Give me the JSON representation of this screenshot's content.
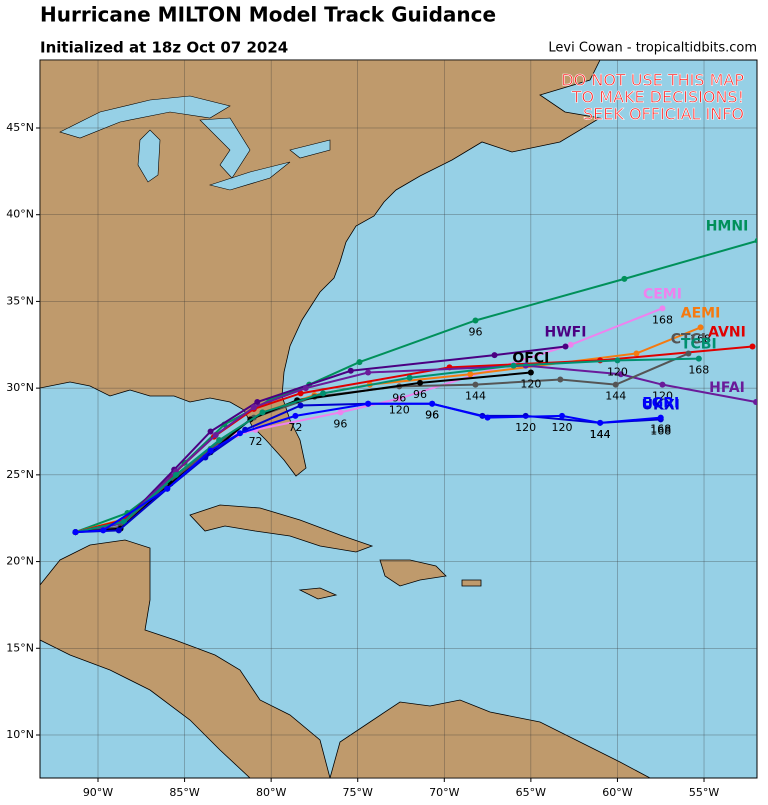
{
  "chart_data": {
    "type": "line",
    "title": "Hurricane MILTON Model Track Guidance",
    "subtitle": "Initialized at 18z Oct 07 2024",
    "credit": "Levi Cowan - tropicaltidbits.com",
    "warning": [
      "DO NOT USE THIS MAP",
      "TO MAKE DECISIONS!",
      "SEEK OFFICIAL INFO"
    ],
    "xlim": [
      -93.35,
      -51.94
    ],
    "ylim": [
      7.52,
      48.92
    ],
    "xticks": [
      {
        "value": -90,
        "label": "90°W"
      },
      {
        "value": -85,
        "label": "85°W"
      },
      {
        "value": -80,
        "label": "80°W"
      },
      {
        "value": -75,
        "label": "75°W"
      },
      {
        "value": -70,
        "label": "70°W"
      },
      {
        "value": -65,
        "label": "65°W"
      },
      {
        "value": -60,
        "label": "60°W"
      },
      {
        "value": -55,
        "label": "55°W"
      }
    ],
    "yticks": [
      {
        "value": 10,
        "label": "10°N"
      },
      {
        "value": 15,
        "label": "15°N"
      },
      {
        "value": 20,
        "label": "20°N"
      },
      {
        "value": 25,
        "label": "25°N"
      },
      {
        "value": 30,
        "label": "30°N"
      },
      {
        "value": 35,
        "label": "35°N"
      },
      {
        "value": 40,
        "label": "40°N"
      },
      {
        "value": 45,
        "label": "45°N"
      }
    ],
    "grid": true,
    "series": [
      {
        "name": "HMNI",
        "color": "#00905a",
        "x": [
          -91.3,
          -88.3,
          -86.7,
          -85,
          -82.7,
          -80.1,
          -77.8,
          -74.9,
          -68.2,
          -59.6,
          -51.9
        ],
        "y": [
          21.7,
          22.8,
          24.0,
          25.7,
          27.9,
          29.3,
          30.2,
          31.5,
          33.9,
          36.3,
          38.5
        ],
        "hours": [
          null,
          null,
          null,
          null,
          null,
          null,
          null,
          null,
          "96",
          null,
          null
        ]
      },
      {
        "name": "CEMI",
        "color": "#ee82ee",
        "x": [
          -91.3,
          -88.5,
          -86,
          -84,
          -82,
          -80.9,
          -76,
          -72.6,
          -62.7,
          -57.4
        ],
        "y": [
          21.7,
          22.3,
          24.3,
          26.0,
          27.3,
          27.6,
          28.6,
          29.4,
          32.5,
          34.6
        ],
        "hours": [
          null,
          null,
          null,
          null,
          null,
          "72",
          "96",
          "120",
          null,
          "168"
        ]
      },
      {
        "name": "AEMI",
        "color": "#f57a10",
        "x": [
          -91.3,
          -88.3,
          -85.5,
          -83,
          -80.5,
          -77.5,
          -74.3,
          -68.5,
          -58.9,
          -55.2
        ],
        "y": [
          21.7,
          22.5,
          24.8,
          27.0,
          28.6,
          29.6,
          30.2,
          30.8,
          32.0,
          33.5
        ],
        "hours": [
          null,
          null,
          null,
          null,
          null,
          null,
          null,
          null,
          null,
          "168"
        ]
      },
      {
        "name": "AVNI",
        "color": "#e00000",
        "x": [
          -91.3,
          -88.5,
          -85.8,
          -83.3,
          -81,
          -78.3,
          -69.7,
          -61,
          -52.2
        ],
        "y": [
          21.7,
          22.4,
          24.9,
          27.2,
          28.8,
          29.7,
          31.2,
          31.6,
          32.4
        ],
        "hours": [
          null,
          null,
          null,
          null,
          null,
          null,
          null,
          null,
          null
        ]
      },
      {
        "name": "HWFI",
        "color": "#4b0082",
        "x": [
          -91.3,
          -88.6,
          -85.6,
          -83.5,
          -80.8,
          -75.4,
          -67.1,
          -63.0
        ],
        "y": [
          21.7,
          22.2,
          25.3,
          27.5,
          29.2,
          31.0,
          31.9,
          32.4
        ],
        "hours": [
          null,
          null,
          null,
          null,
          null,
          null,
          null,
          null
        ]
      },
      {
        "name": "HFAI",
        "color": "#6a1b9a",
        "x": [
          -91.3,
          -88.6,
          -85.5,
          -83.2,
          -81,
          -78,
          -74.4,
          -65.3,
          -59.8,
          -57.4,
          -52.0
        ],
        "y": [
          21.7,
          22.2,
          25.2,
          27.3,
          28.9,
          30.0,
          30.9,
          31.3,
          30.8,
          30.2,
          29.2
        ],
        "hours": [
          null,
          null,
          null,
          null,
          null,
          null,
          null,
          null,
          null,
          "120",
          null
        ]
      },
      {
        "name": "CTCI",
        "color": "#555555",
        "x": [
          -91.3,
          -88.7,
          -85.8,
          -83.5,
          -81,
          -77.5,
          -72.6,
          -68.2,
          -63.3,
          -60.1,
          -55.9
        ],
        "y": [
          21.7,
          22.0,
          24.6,
          26.5,
          28.3,
          29.5,
          30.1,
          30.2,
          30.5,
          30.2,
          32.0
        ],
        "hours": [
          null,
          null,
          null,
          null,
          null,
          null,
          "96",
          "144",
          null,
          "144",
          null
        ]
      },
      {
        "name": "OFCI",
        "color": "#000000",
        "x": [
          -91.3,
          -88.7,
          -85.8,
          -83.5,
          -81.2,
          -78.5,
          -71.4,
          -65.0
        ],
        "y": [
          21.7,
          21.9,
          24.5,
          26.3,
          28.2,
          29.3,
          30.3,
          30.9
        ],
        "hours": [
          null,
          null,
          null,
          null,
          null,
          null,
          "96",
          "120"
        ]
      },
      {
        "name": "TCBI",
        "color": "#009070",
        "x": [
          -91.3,
          -88.5,
          -85.5,
          -83,
          -80.5,
          -77,
          -72,
          -66,
          -60,
          -55.3
        ],
        "y": [
          21.7,
          22.3,
          25.0,
          27.0,
          28.6,
          29.7,
          30.6,
          31.3,
          31.6,
          31.7
        ],
        "hours": [
          null,
          null,
          null,
          null,
          null,
          null,
          null,
          null,
          "120",
          "168"
        ]
      },
      {
        "name": "UKXI",
        "color": "#0000cd",
        "x": [
          -91.3,
          -88.8,
          -86,
          -83.8,
          -81.5,
          -78.3,
          -74.4,
          -70.7,
          -67.8,
          -65.3,
          -61,
          -57.5
        ],
        "y": [
          21.7,
          21.8,
          24.2,
          26.0,
          27.6,
          29.0,
          29.1,
          29.1,
          28.4,
          28.4,
          28.0,
          28.2
        ],
        "hours": [
          null,
          null,
          null,
          null,
          null,
          null,
          null,
          "96",
          null,
          "120",
          "144",
          "168"
        ]
      },
      {
        "name": "EGRI",
        "color": "#0000ff",
        "x": [
          -91.3,
          -89.7,
          -86,
          -83.5,
          -81.8,
          -78.6,
          -74.4,
          -70.7,
          -67.5,
          -63.2,
          -61,
          -57.5
        ],
        "y": [
          21.7,
          21.8,
          24.2,
          26.4,
          27.4,
          28.4,
          29.1,
          29.1,
          28.3,
          28.4,
          28.0,
          28.3
        ],
        "hours": [
          null,
          null,
          null,
          null,
          null,
          "72",
          null,
          "96",
          null,
          "120",
          "144",
          "168"
        ]
      }
    ]
  }
}
